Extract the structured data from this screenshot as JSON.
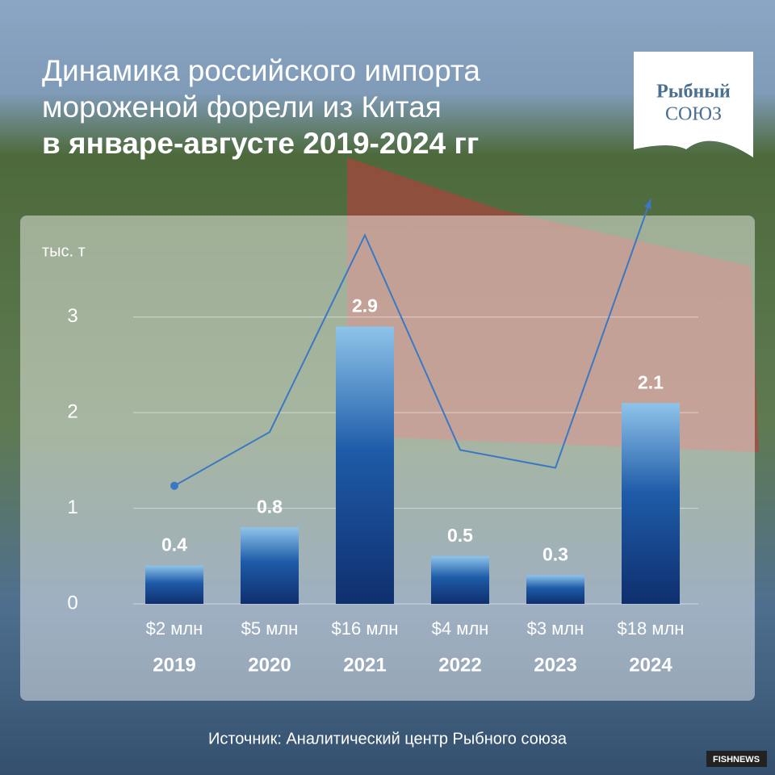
{
  "chart_data": {
    "type": "bar",
    "title": [
      "Динамика российского импорта",
      "мороженой форели из Китая",
      "в январе-августе 2019-2024 гг"
    ],
    "y_label": "тыс. т",
    "categories": [
      "2019",
      "2020",
      "2021",
      "2022",
      "2023",
      "2024"
    ],
    "series": [
      {
        "type": "bar",
        "color": "#1f4e9c",
        "values": [
          0.4,
          0.8,
          2.9,
          0.5,
          0.3,
          2.1
        ]
      },
      {
        "type": "line",
        "axis": "y2",
        "color": "#3a78c4",
        "values": [
          2,
          5,
          16,
          4,
          3,
          18
        ],
        "value_labels": [
          "$2 млн",
          "$5 млн",
          "$16 млн",
          "$4 млн",
          "$3 млн",
          "$18 млн"
        ]
      }
    ],
    "ylim": [
      0,
      3.8
    ],
    "yticks": [
      0,
      1,
      2,
      3
    ],
    "y2lim": [
      -4.6,
      15.7
    ],
    "grid": true,
    "source": "Источник: Аналитический центр Рыбного союза",
    "logo": [
      "Рыбный",
      "СОЮЗ"
    ],
    "badge": "FISHNEWS"
  }
}
